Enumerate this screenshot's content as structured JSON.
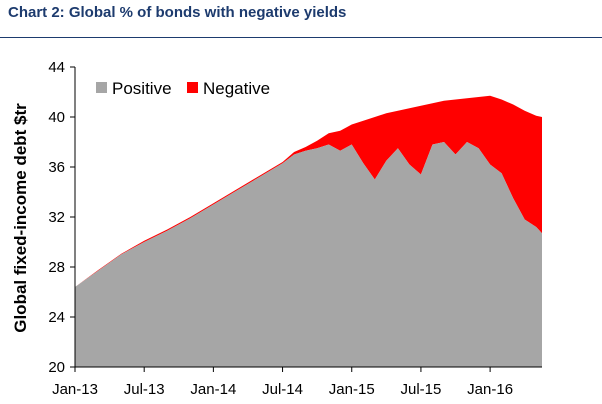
{
  "chart_data": {
    "type": "area",
    "title": "Chart 2: Global % of bonds with negative yields",
    "ylabel": "Global fixed-income debt $tr",
    "xlabel": "",
    "ylim": [
      20,
      44
    ],
    "yticks": [
      20,
      24,
      28,
      32,
      36,
      40,
      44
    ],
    "xticks": [
      "Jan-13",
      "Jul-13",
      "Jan-14",
      "Jul-14",
      "Jan-15",
      "Jul-15",
      "Jan-16"
    ],
    "legend_position": "top-left",
    "x": [
      0,
      2,
      4,
      6,
      8,
      10,
      12,
      14,
      16,
      18,
      19,
      20,
      21,
      22,
      23,
      24,
      25,
      26,
      27,
      28,
      29,
      30,
      31,
      32,
      33,
      34,
      35,
      36,
      37,
      38,
      39,
      40,
      40.5
    ],
    "series": [
      {
        "name": "Positive",
        "color": "#a6a6a6",
        "values": [
          26.4,
          27.7,
          29.0,
          30.0,
          30.9,
          31.9,
          33.0,
          34.1,
          35.2,
          36.3,
          37.0,
          37.3,
          37.5,
          37.8,
          37.3,
          37.8,
          36.3,
          35.0,
          36.5,
          37.5,
          36.2,
          35.4,
          37.8,
          38.0,
          37.0,
          38.0,
          37.5,
          36.2,
          35.5,
          33.5,
          31.8,
          31.2,
          30.7
        ]
      },
      {
        "name": "Negative",
        "color": "#ff0000",
        "values": [
          0.0,
          0.05,
          0.05,
          0.1,
          0.1,
          0.1,
          0.1,
          0.1,
          0.1,
          0.1,
          0.2,
          0.3,
          0.6,
          0.9,
          1.6,
          1.6,
          3.4,
          5.0,
          3.8,
          3.0,
          4.5,
          5.5,
          3.3,
          3.3,
          4.4,
          3.5,
          4.1,
          5.5,
          5.9,
          7.5,
          8.7,
          8.9,
          9.3
        ]
      }
    ]
  }
}
